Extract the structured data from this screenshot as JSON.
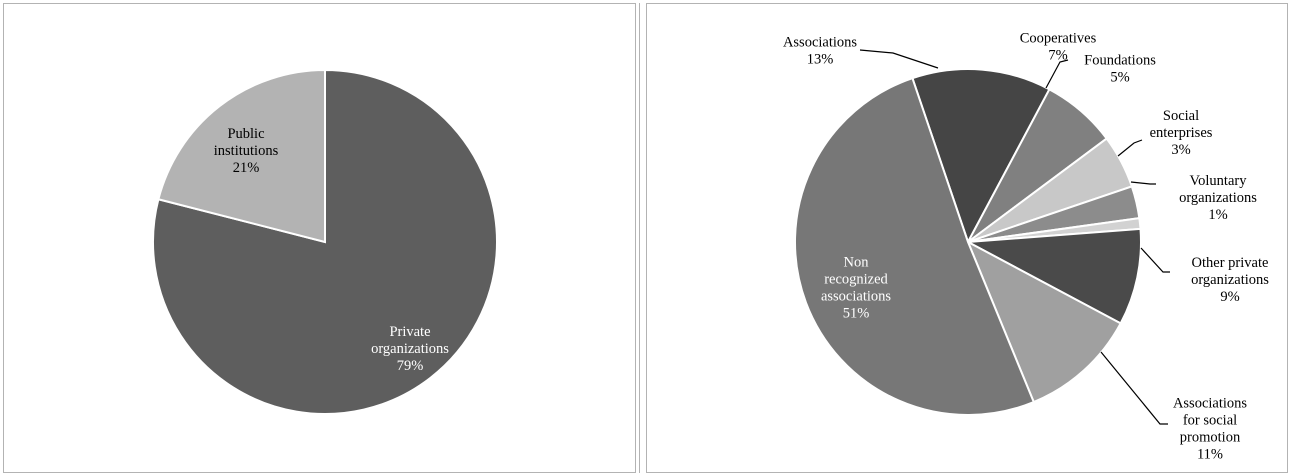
{
  "chart_data": [
    {
      "type": "pie",
      "title": "",
      "slices": [
        {
          "label": [
            "Private",
            "organizations"
          ],
          "value": 79,
          "value_label": "79%",
          "color": "#5e5e5e"
        },
        {
          "label": [
            "Public",
            "institutions"
          ],
          "value": 21,
          "value_label": "21%",
          "color": "#b3b3b3"
        }
      ]
    },
    {
      "type": "pie",
      "title": "",
      "slices": [
        {
          "label": [
            "Associations"
          ],
          "value": 13,
          "value_label": "13%",
          "color": "#454545"
        },
        {
          "label": [
            "Cooperatives"
          ],
          "value": 7,
          "value_label": "7%",
          "color": "#808080"
        },
        {
          "label": [
            "Foundations"
          ],
          "value": 5,
          "value_label": "5%",
          "color": "#c8c8c8"
        },
        {
          "label": [
            "Social",
            "enterprises"
          ],
          "value": 3,
          "value_label": "3%",
          "color": "#8c8c8c"
        },
        {
          "label": [
            "Voluntary",
            "organizations"
          ],
          "value": 1,
          "value_label": "1%",
          "color": "#d2d2d2"
        },
        {
          "label": [
            "Other private",
            "organizations"
          ],
          "value": 9,
          "value_label": "9%",
          "color": "#4a4a4a"
        },
        {
          "label": [
            "Associations",
            "for social",
            "promotion"
          ],
          "value": 11,
          "value_label": "11%",
          "color": "#a0a0a0"
        },
        {
          "label": [
            "Non",
            "recognized",
            "associations"
          ],
          "value": 51,
          "value_label": "51%",
          "color": "#777777"
        }
      ]
    }
  ]
}
